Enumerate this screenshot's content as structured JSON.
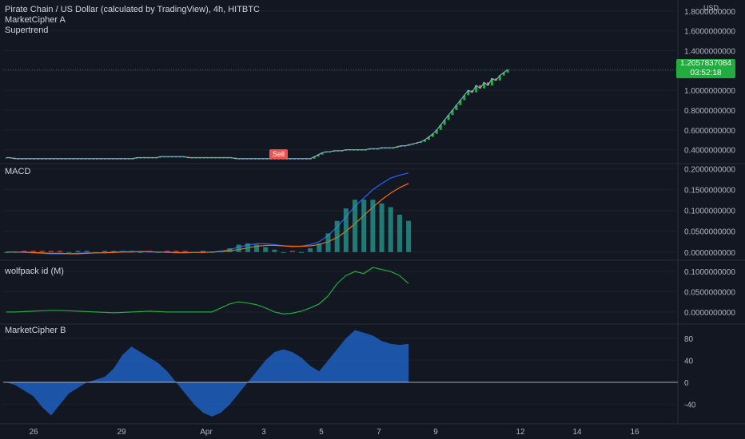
{
  "header": {
    "title": "Pirate Chain / US Dollar (calculated by TradingView), 4h, HITBTC",
    "indicators": [
      "MarketCipher A",
      "Supertrend"
    ]
  },
  "price_tag": {
    "value": "1.2057837084",
    "countdown": "03:52:18"
  },
  "sell_label": "Sell",
  "colors": {
    "background": "#131722",
    "grid": "#1e222d",
    "up": "#22ab3f",
    "down": "#ef5350",
    "macd_line": "#2962ff",
    "signal_line": "#ff6d00",
    "wolfpack": "#22ab3f",
    "mcb_wave": "#1e5fc0"
  },
  "chart_data": [
    {
      "type": "line",
      "pane": "price",
      "ylabel": "USD",
      "yticks": [
        "1.8000000000",
        "1.6000000000",
        "1.4000000000",
        "1.2000000000",
        "1.0000000000",
        "0.8000000000",
        "0.6000000000",
        "0.4000000000"
      ],
      "ytick_values": [
        1.8,
        1.6,
        1.4,
        1.2,
        1.0,
        0.8,
        0.6,
        0.4
      ],
      "ylim": [
        0.3,
        1.88
      ],
      "xlim": [
        0,
        130
      ],
      "close": [
        0.32,
        0.32,
        0.31,
        0.31,
        0.31,
        0.31,
        0.31,
        0.31,
        0.31,
        0.31,
        0.31,
        0.31,
        0.31,
        0.31,
        0.31,
        0.31,
        0.31,
        0.31,
        0.31,
        0.31,
        0.31,
        0.31,
        0.31,
        0.31,
        0.31,
        0.31,
        0.31,
        0.31,
        0.31,
        0.31,
        0.31,
        0.31,
        0.31,
        0.32,
        0.32,
        0.32,
        0.32,
        0.32,
        0.32,
        0.33,
        0.33,
        0.33,
        0.33,
        0.33,
        0.33,
        0.33,
        0.32,
        0.32,
        0.32,
        0.32,
        0.32,
        0.32,
        0.32,
        0.32,
        0.32,
        0.32,
        0.32,
        0.32,
        0.31,
        0.31,
        0.31,
        0.31,
        0.31,
        0.31,
        0.31,
        0.31,
        0.31,
        0.31,
        0.31,
        0.31,
        0.31,
        0.31,
        0.31,
        0.31,
        0.31,
        0.31,
        0.31,
        0.31,
        0.33,
        0.35,
        0.37,
        0.38,
        0.38,
        0.39,
        0.39,
        0.39,
        0.4,
        0.4,
        0.4,
        0.4,
        0.4,
        0.4,
        0.41,
        0.41,
        0.41,
        0.42,
        0.42,
        0.42,
        0.42,
        0.43,
        0.44,
        0.44,
        0.45,
        0.46,
        0.47,
        0.48,
        0.5,
        0.53,
        0.56,
        0.6,
        0.65,
        0.7,
        0.75,
        0.8,
        0.85,
        0.9,
        0.95,
        1.0,
        0.98,
        1.05,
        1.02,
        1.08,
        1.05,
        1.12,
        1.1,
        1.15,
        1.18,
        1.21
      ]
    },
    {
      "type": "line",
      "pane": "macd",
      "title": "MACD",
      "yticks": [
        "0.2000000000",
        "0.1500000000",
        "0.1000000000",
        "0.0500000000",
        "0.0000000000"
      ],
      "ytick_values": [
        0.2,
        0.15,
        0.1,
        0.05,
        0.0
      ],
      "ylim": [
        -0.01,
        0.205
      ],
      "series": [
        {
          "values": [
            0.0,
            0.0,
            -0.001,
            -0.002,
            -0.003,
            -0.004,
            -0.004,
            -0.004,
            -0.003,
            -0.002,
            -0.002,
            -0.001,
            0.0,
            0.001,
            0.001,
            0.001,
            0.0,
            0.0,
            -0.001,
            -0.002,
            -0.002,
            -0.001,
            0.0,
            0.0,
            0.002,
            0.006,
            0.012,
            0.017,
            0.02,
            0.02,
            0.018,
            0.015,
            0.013,
            0.014,
            0.018,
            0.025,
            0.04,
            0.06,
            0.085,
            0.11,
            0.13,
            0.15,
            0.165,
            0.178,
            0.185,
            0.19
          ]
        },
        {
          "values": [
            0.0,
            0.0,
            0.0,
            -0.001,
            -0.002,
            -0.003,
            -0.003,
            -0.004,
            -0.004,
            -0.003,
            -0.002,
            -0.002,
            -0.001,
            0.0,
            0.0,
            0.001,
            0.001,
            0.0,
            0.0,
            -0.001,
            -0.001,
            -0.001,
            -0.001,
            0.0,
            0.001,
            0.003,
            0.006,
            0.01,
            0.014,
            0.016,
            0.016,
            0.015,
            0.014,
            0.014,
            0.015,
            0.018,
            0.025,
            0.035,
            0.05,
            0.068,
            0.088,
            0.108,
            0.126,
            0.142,
            0.155,
            0.165
          ]
        }
      ]
    },
    {
      "type": "line",
      "pane": "wolfpack",
      "title": "wolfpack id (M)",
      "yticks": [
        "0.1000000000",
        "0.0500000000",
        "0.0000000000"
      ],
      "ytick_values": [
        0.1,
        0.05,
        0.0
      ],
      "ylim": [
        -0.02,
        0.12
      ],
      "series": [
        {
          "values": [
            0.0,
            0.0,
            0.001,
            0.002,
            0.003,
            0.004,
            0.004,
            0.003,
            0.002,
            0.001,
            0.0,
            -0.001,
            -0.002,
            -0.001,
            0.0,
            0.001,
            0.002,
            0.001,
            0.0,
            0.0,
            0.0,
            0.0,
            0.0,
            0.0,
            0.01,
            0.02,
            0.025,
            0.022,
            0.018,
            0.01,
            0.0,
            -0.005,
            -0.003,
            0.002,
            0.01,
            0.02,
            0.04,
            0.07,
            0.09,
            0.1,
            0.095,
            0.11,
            0.105,
            0.1,
            0.09,
            0.07
          ]
        }
      ]
    },
    {
      "type": "area",
      "pane": "marketcipher-b",
      "title": "MarketCipher B",
      "yticks": [
        "80",
        "40",
        "0",
        "-40"
      ],
      "ytick_values": [
        80,
        40,
        0,
        -40
      ],
      "ylim": [
        -68,
        100
      ],
      "series": [
        {
          "values": [
            0,
            -5,
            -15,
            -25,
            -45,
            -60,
            -40,
            -20,
            -10,
            0,
            5,
            10,
            25,
            50,
            65,
            55,
            45,
            35,
            20,
            0,
            -20,
            -40,
            -55,
            -62,
            -55,
            -40,
            -20,
            0,
            20,
            40,
            55,
            60,
            55,
            45,
            30,
            20,
            40,
            60,
            80,
            95,
            90,
            85,
            75,
            70,
            68,
            70
          ]
        }
      ]
    }
  ],
  "xaxis": {
    "labels": [
      "26",
      "29",
      "Apr",
      "3",
      "5",
      "7",
      "9",
      "12",
      "14",
      "16"
    ]
  }
}
